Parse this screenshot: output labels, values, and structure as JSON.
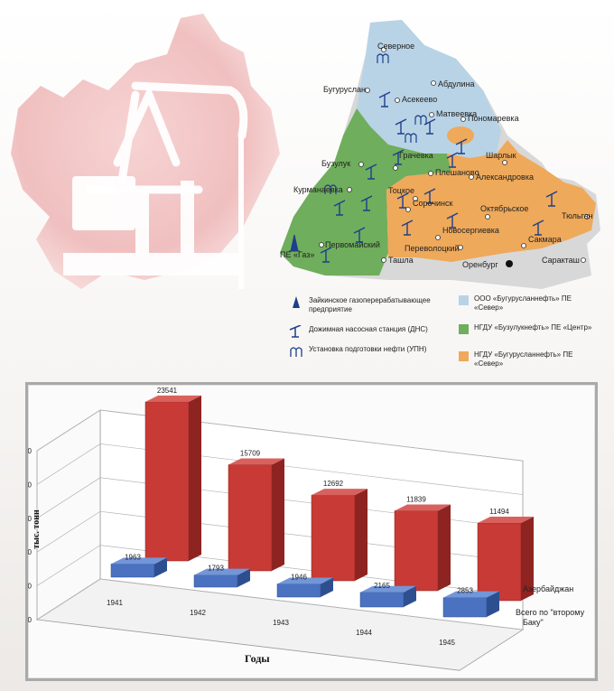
{
  "map": {
    "cities": [
      "Северное",
      "Абдулина",
      "Бугуруслан",
      "Асекеево",
      "Матвеевка",
      "Пономаревка",
      "Бузулук",
      "Грачевка",
      "Плешаново",
      "Шарлык",
      "Александровка",
      "Курманаевка",
      "Тоцкое",
      "Сорочинск",
      "Октябрьское",
      "Тюльган",
      "Новосергиевка",
      "Первомайский",
      "Переволоцкий",
      "Сакмара",
      "Ташла",
      "Оренбург",
      "Саракташ"
    ],
    "gas_label": "ПЕ «Газ»"
  },
  "legend": {
    "gas_plant": "Зайкинское газоперерабатывающее предприятие",
    "pump_station": "Дожимная насосная станция (ДНС)",
    "oil_unit": "Установка подготовки нефти (УПН)",
    "zone1": "ООО «Бугурусланнефть» ПЕ «Север»",
    "zone2": "НГДУ «Бузулукнефть» ПЕ «Центр»",
    "zone3": "НГДУ «Бугурусланнефть» ПЕ «Север»",
    "colors": {
      "zone1": "#b8d3e6",
      "zone2": "#6fae5c",
      "zone3": "#eea95b"
    }
  },
  "chart_data": {
    "type": "bar",
    "categories": [
      "1941",
      "1942",
      "1943",
      "1944",
      "1945"
    ],
    "series": [
      {
        "name": "Азербайджан",
        "values": [
          23541,
          15709,
          12692,
          11839,
          11494
        ],
        "color": "#c83a35"
      },
      {
        "name": "Всего по \"второму Баку\"",
        "values": [
          1963,
          1793,
          1946,
          2165,
          2853
        ],
        "color": "#4a72c0"
      }
    ],
    "yticks": [
      "0",
      "5000",
      "10000",
      "15000",
      "20000",
      "25000"
    ],
    "ylim": [
      0,
      25000
    ],
    "ylabel": "тыс. тонн",
    "xlabel": "Годы",
    "value_labels": {
      "front": [
        "1963",
        "1793",
        "1946",
        "2165",
        "2853"
      ],
      "back": [
        "23541",
        "15709",
        "12692",
        "11839",
        "11494"
      ]
    }
  }
}
